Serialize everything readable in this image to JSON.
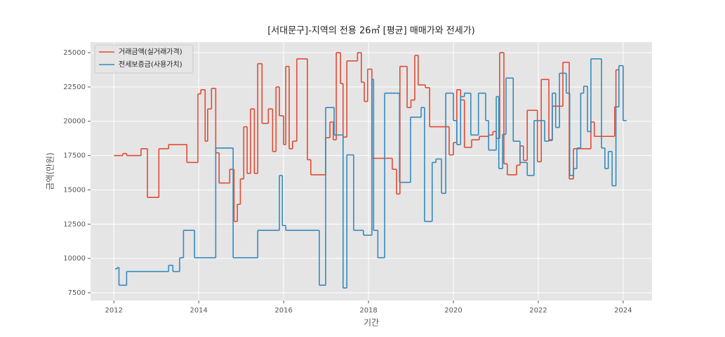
{
  "chart_data": {
    "type": "line",
    "drawstyle": "steps-post",
    "title": "[서대문구]-지역의 전용 26㎡ [평균] 매매가와 전세가)",
    "xlabel": "기간",
    "ylabel": "금액(만원)",
    "xlim": [
      2011.45,
      2024.68
    ],
    "ylim": [
      6937,
      25770
    ],
    "xticks": [
      2012,
      2014,
      2016,
      2018,
      2020,
      2022,
      2024
    ],
    "yticks": [
      7500,
      10000,
      12500,
      15000,
      17500,
      20000,
      22500,
      25000
    ],
    "grid": true,
    "legend": "upper left",
    "series": [
      {
        "name": "거래금액(실거래가격)",
        "color": "#e24a33",
        "x": [
          2012.0,
          2012.21,
          2012.3,
          2012.64,
          2012.79,
          2013.06,
          2013.29,
          2013.72,
          2013.98,
          2014.05,
          2014.15,
          2014.21,
          2014.3,
          2014.4,
          2014.48,
          2014.73,
          2014.83,
          2014.91,
          2014.98,
          2015.06,
          2015.14,
          2015.22,
          2015.31,
          2015.39,
          2015.49,
          2015.64,
          2015.74,
          2015.82,
          2015.9,
          2016.0,
          2016.05,
          2016.13,
          2016.21,
          2016.31,
          2016.56,
          2016.64,
          2016.99,
          2017.09,
          2017.17,
          2017.24,
          2017.34,
          2017.4,
          2017.49,
          2017.74,
          2017.83,
          2017.9,
          2017.98,
          2018.08,
          2018.56,
          2018.66,
          2018.74,
          2018.91,
          2019.0,
          2019.09,
          2019.17,
          2019.34,
          2019.44,
          2019.9,
          2020.0,
          2020.08,
          2020.17,
          2020.26,
          2020.43,
          2020.61,
          2020.83,
          2020.93,
          2021.01,
          2021.09,
          2021.19,
          2021.27,
          2021.49,
          2021.57,
          2021.65,
          2021.74,
          2021.98,
          2022.07,
          2022.25,
          2022.33,
          2022.58,
          2022.73,
          2022.83,
          2023.24,
          2023.32,
          2023.8,
          2023.83,
          2023.9
        ],
        "values": [
          17500,
          17650,
          17500,
          18000,
          14450,
          18000,
          18300,
          17000,
          22000,
          22300,
          18550,
          20900,
          22400,
          17700,
          15500,
          16500,
          12700,
          13950,
          15800,
          19600,
          16200,
          20900,
          16200,
          24200,
          19850,
          20900,
          17800,
          22500,
          20400,
          18300,
          24000,
          18000,
          18550,
          24550,
          17200,
          16100,
          18800,
          19950,
          18650,
          25000,
          22750,
          18850,
          24400,
          25000,
          22850,
          21450,
          23800,
          17300,
          16500,
          14700,
          24000,
          21000,
          21550,
          24800,
          22650,
          22450,
          19600,
          17550,
          18450,
          22300,
          21550,
          18100,
          18650,
          18900,
          19000,
          19250,
          18750,
          25000,
          16900,
          16100,
          16800,
          18200,
          17150,
          20800,
          17050,
          23050,
          18600,
          21100,
          24300,
          15800,
          18000,
          19950,
          18900,
          21050,
          23750,
          23750
        ]
      },
      {
        "name": "전세보증금(사용가치)",
        "color": "#348abd",
        "x": [
          2012.03,
          2012.08,
          2012.12,
          2012.3,
          2013.29,
          2013.39,
          2013.55,
          2013.64,
          2013.9,
          2014.4,
          2014.81,
          2015.39,
          2015.9,
          2015.97,
          2016.05,
          2016.84,
          2016.99,
          2017.19,
          2017.4,
          2017.49,
          2017.65,
          2017.88,
          2018.08,
          2018.12,
          2018.22,
          2018.38,
          2018.73,
          2018.99,
          2019.24,
          2019.32,
          2019.5,
          2019.59,
          2019.72,
          2019.82,
          2020.0,
          2020.08,
          2020.17,
          2020.26,
          2020.41,
          2020.59,
          2020.76,
          2020.83,
          2021.01,
          2021.07,
          2021.16,
          2021.24,
          2021.41,
          2021.57,
          2021.74,
          2021.9,
          2022.15,
          2022.25,
          2022.33,
          2022.41,
          2022.5,
          2022.66,
          2022.74,
          2022.83,
          2022.91,
          2023.0,
          2023.07,
          2023.16,
          2023.24,
          2023.49,
          2023.57,
          2023.65,
          2023.74,
          2023.83,
          2023.9,
          2024.0,
          2024.08
        ],
        "values": [
          9250,
          9340,
          8050,
          9050,
          9500,
          9050,
          10050,
          12050,
          10050,
          18050,
          10050,
          12050,
          16050,
          12400,
          12050,
          8050,
          21000,
          19000,
          7850,
          17550,
          12050,
          11700,
          23050,
          12050,
          10050,
          22050,
          15550,
          20300,
          21000,
          12700,
          17000,
          17250,
          14750,
          22050,
          20050,
          18300,
          21800,
          22050,
          19000,
          22050,
          20050,
          17900,
          21800,
          16550,
          19050,
          23150,
          18550,
          17000,
          16050,
          20050,
          18550,
          18650,
          22050,
          19550,
          23500,
          22050,
          16050,
          16550,
          18050,
          22050,
          22550,
          19250,
          24550,
          18050,
          16550,
          17800,
          15300,
          21050,
          24050,
          20050,
          20050
        ]
      }
    ]
  }
}
